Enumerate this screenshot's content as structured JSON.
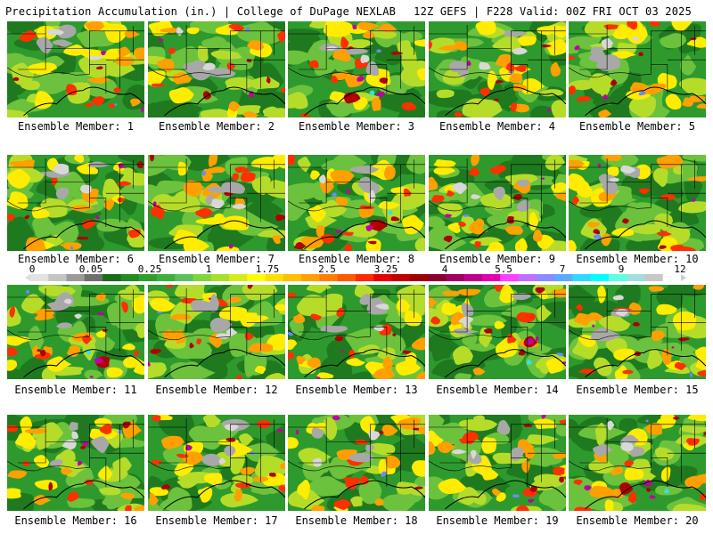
{
  "header": {
    "left": "Precipitation Accumulation (in.) | College of DuPage NEXLAB",
    "right": "12Z GEFS | F228 Valid: 00Z FRI OCT 03 2025"
  },
  "caption_prefix": "Ensemble Member: ",
  "members": [
    {
      "label": "Ensemble Member: 1",
      "num": 1
    },
    {
      "label": "Ensemble Member: 2",
      "num": 2
    },
    {
      "label": "Ensemble Member: 3",
      "num": 3
    },
    {
      "label": "Ensemble Member: 4",
      "num": 4
    },
    {
      "label": "Ensemble Member: 5",
      "num": 5
    },
    {
      "label": "Ensemble Member: 6",
      "num": 6
    },
    {
      "label": "Ensemble Member: 7",
      "num": 7
    },
    {
      "label": "Ensemble Member: 8",
      "num": 8
    },
    {
      "label": "Ensemble Member: 9",
      "num": 9
    },
    {
      "label": "Ensemble Member: 10",
      "num": 10
    },
    {
      "label": "Ensemble Member: 11",
      "num": 11
    },
    {
      "label": "Ensemble Member: 12",
      "num": 12
    },
    {
      "label": "Ensemble Member: 13",
      "num": 13
    },
    {
      "label": "Ensemble Member: 14",
      "num": 14
    },
    {
      "label": "Ensemble Member: 15",
      "num": 15
    },
    {
      "label": "Ensemble Member: 16",
      "num": 16
    },
    {
      "label": "Ensemble Member: 17",
      "num": 17
    },
    {
      "label": "Ensemble Member: 18",
      "num": 18
    },
    {
      "label": "Ensemble Member: 19",
      "num": 19
    },
    {
      "label": "Ensemble Member: 20",
      "num": 20
    }
  ],
  "colorbar": {
    "labels": [
      "0",
      "0.05",
      "0.25",
      "1",
      "1.75",
      "2.5",
      "3.25",
      "4",
      "5.5",
      "7",
      "9",
      "12"
    ],
    "colors": [
      "#e2e2e2",
      "#c4c4c4",
      "#9a9a9a",
      "#6f6f6f",
      "#1a6b1a",
      "#228b22",
      "#2f9e2f",
      "#3cb03c",
      "#5cc35c",
      "#7fd63c",
      "#a8e02a",
      "#d6ec1a",
      "#ffff00",
      "#ffde00",
      "#ffc000",
      "#ffa000",
      "#ff7f00",
      "#ff5a00",
      "#ff2a00",
      "#e60000",
      "#c00000",
      "#a00000",
      "#8b0030",
      "#a00060",
      "#c0008a",
      "#e000b0",
      "#ff40ff",
      "#c070ff",
      "#8a8aff",
      "#5aaaff",
      "#30d8ff",
      "#00ffff",
      "#60ffe0",
      "#a0e0e0",
      "#c8c8c8",
      "#ffffff"
    ]
  },
  "palette": {
    "gray_light": "#d8d8d8",
    "gray": "#a8a8a8",
    "green_dark": "#1f7a1f",
    "green": "#2e9a2e",
    "green_light": "#6cc23c",
    "yellow_green": "#b6dc2a",
    "yellow": "#ffec00",
    "orange": "#ffa000",
    "red": "#ff3000",
    "dark_red": "#b00000",
    "magenta": "#c000a0",
    "blue": "#6a8aff",
    "cyan": "#30e0ff"
  }
}
